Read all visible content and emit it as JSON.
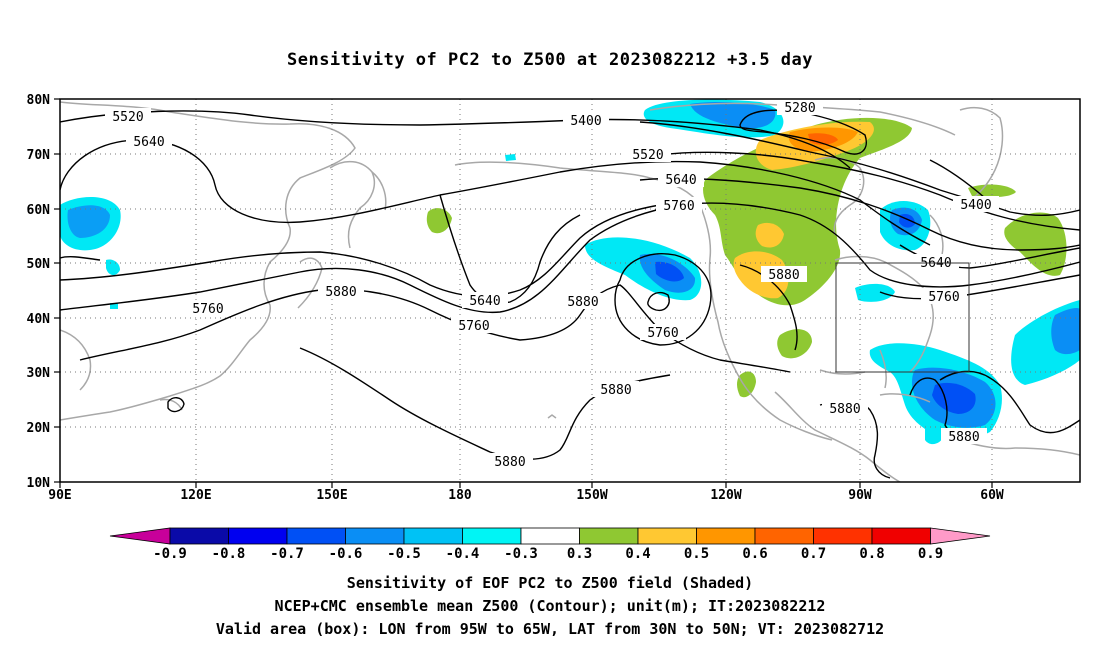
{
  "title": "Sensitivity of PC2 to Z500 at 2023082212 +3.5 day",
  "map": {
    "lat_labels": [
      "80N",
      "70N",
      "60N",
      "50N",
      "40N",
      "30N",
      "20N",
      "10N"
    ],
    "lon_labels": [
      "90E",
      "120E",
      "150E",
      "180",
      "150W",
      "120W",
      "90W",
      "60W"
    ],
    "contour_labels": [
      {
        "text": "5520"
      },
      {
        "text": "5640"
      },
      {
        "text": "5280"
      },
      {
        "text": "5400"
      },
      {
        "text": "5520"
      },
      {
        "text": "5640"
      },
      {
        "text": "5760"
      },
      {
        "text": "5880"
      },
      {
        "text": "5400"
      },
      {
        "text": "5640"
      },
      {
        "text": "5760"
      },
      {
        "text": "5760"
      },
      {
        "text": "5880"
      },
      {
        "text": "5640"
      },
      {
        "text": "5760"
      },
      {
        "text": "5880"
      },
      {
        "text": "5760"
      },
      {
        "text": "5880"
      },
      {
        "text": "5880"
      },
      {
        "text": "5880"
      },
      {
        "text": "5880"
      }
    ],
    "valid_box": {
      "lon_min": -95,
      "lon_max": -65,
      "lat_min": 30,
      "lat_max": 50
    }
  },
  "colorbar": {
    "labels": [
      "-0.9",
      "-0.8",
      "-0.7",
      "-0.6",
      "-0.5",
      "-0.4",
      "-0.3",
      "0.3",
      "0.4",
      "0.5",
      "0.6",
      "0.7",
      "0.8",
      "0.9"
    ],
    "colors": [
      "#c8009a",
      "#0a0aa8",
      "#0000f0",
      "#0050f5",
      "#0a8ef5",
      "#00c2f5",
      "#00f5f5",
      "#ffffff",
      "#8fc832",
      "#ffc832",
      "#ff9600",
      "#ff6400",
      "#ff3200",
      "#f00000",
      "#ff9ac8"
    ]
  },
  "captions": [
    "Sensitivity of EOF PC2 to Z500 field (Shaded)",
    "NCEP+CMC ensemble mean Z500 (Contour); unit(m); IT:2023082212",
    "Valid area (box): LON from 95W to 65W, LAT from 30N to 50N; VT: 2023082712"
  ]
}
